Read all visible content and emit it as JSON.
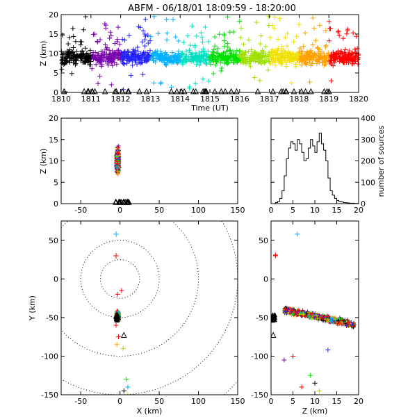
{
  "title": "ABFM - 06/18/01 18:09:59 - 18:20:00",
  "chart_data": [
    {
      "id": "time-height",
      "type": "scatter",
      "xlabel": "Time (UT)",
      "ylabel": "Z (km)",
      "xlim": [
        1810,
        1820
      ],
      "ylim": [
        0,
        20
      ],
      "xticks": [
        "1810",
        "1811",
        "1812",
        "1813",
        "1814",
        "1815",
        "1816",
        "1817",
        "1818",
        "1819",
        "1820"
      ],
      "yticks": [
        "0",
        "5",
        "10",
        "15",
        "20"
      ],
      "colormap": [
        "#000000",
        "#7700aa",
        "#2222ff",
        "#00b0ff",
        "#00e0c0",
        "#00e000",
        "#a0e000",
        "#f0e000",
        "#ffa000",
        "#ff0000"
      ],
      "description_series": "lightning sources colored by time, heights mostly 5-15 km",
      "stations_marker": "triangle"
    },
    {
      "id": "x-height",
      "type": "scatter",
      "xlabel": "",
      "ylabel": "Z (km)",
      "xlim": [
        -75,
        150
      ],
      "ylim": [
        0,
        20
      ],
      "xticks": [
        "-50",
        "0",
        "50",
        "100",
        "150"
      ],
      "yticks": [
        "0",
        "5",
        "10",
        "15",
        "20"
      ]
    },
    {
      "id": "height-histogram",
      "type": "line",
      "xlabel": "",
      "ylabel": "number of sources",
      "xlim": [
        0,
        20
      ],
      "ylim": [
        0,
        400
      ],
      "xticks": [
        "0",
        "5",
        "10",
        "15",
        "20"
      ],
      "yticks": [
        "0",
        "100",
        "200",
        "300",
        "400"
      ],
      "x": [
        0,
        0.5,
        1,
        1.5,
        2,
        2.5,
        3,
        3.5,
        4,
        4.5,
        5,
        5.5,
        6,
        6.5,
        7,
        7.5,
        8,
        8.5,
        9,
        9.5,
        10,
        10.5,
        11,
        11.5,
        12,
        12.5,
        13,
        13.5,
        14,
        14.5,
        15,
        15.5,
        16,
        16.5,
        17,
        17.5,
        18,
        18.5,
        19,
        19.5,
        20
      ],
      "values": [
        0,
        0,
        5,
        10,
        25,
        60,
        130,
        210,
        260,
        290,
        280,
        250,
        300,
        280,
        240,
        200,
        210,
        260,
        300,
        270,
        240,
        290,
        330,
        280,
        250,
        200,
        120,
        60,
        40,
        25,
        15,
        10,
        8,
        5,
        4,
        3,
        2,
        2,
        1,
        1,
        0
      ]
    },
    {
      "id": "plan-view",
      "type": "scatter",
      "xlabel": "X (km)",
      "ylabel": "Y (km)",
      "xlim": [
        -75,
        150
      ],
      "ylim": [
        -150,
        75
      ],
      "xticks": [
        "-50",
        "0",
        "50",
        "100",
        "150"
      ],
      "yticks": [
        "-150",
        "-100",
        "-50",
        "0",
        "50"
      ],
      "range_rings_km": [
        25,
        50,
        100,
        150,
        200
      ]
    },
    {
      "id": "height-y",
      "type": "scatter",
      "xlabel": "Z (km)",
      "ylabel": "",
      "xlim": [
        0,
        20
      ],
      "ylim": [
        -150,
        75
      ],
      "xticks": [
        "0",
        "5",
        "10",
        "15",
        "20"
      ],
      "yticks": [
        "-150",
        "-100",
        "-50",
        "0",
        "50"
      ]
    }
  ]
}
